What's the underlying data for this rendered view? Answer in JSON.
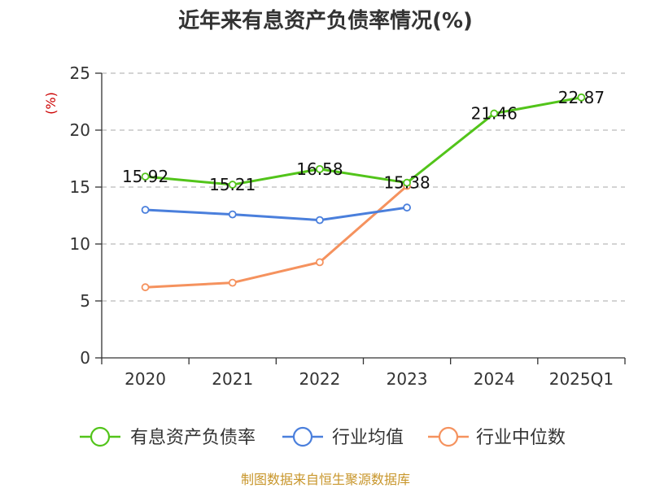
{
  "chart_data": {
    "type": "line",
    "title": "近年来有息资产负债率情况(%)",
    "ylabel": "(%)",
    "categories": [
      "2020",
      "2021",
      "2022",
      "2023",
      "2024",
      "2025Q1"
    ],
    "ylim": [
      0,
      25
    ],
    "yticks": [
      "0",
      "5",
      "10",
      "15",
      "20",
      "25"
    ],
    "grid": true,
    "legend_position": "bottom",
    "series": [
      {
        "name": "有息资产负债率",
        "color": "#52c41a",
        "values": [
          15.92,
          15.21,
          16.58,
          15.38,
          21.46,
          22.87
        ],
        "labels": [
          "15.92",
          "15.21",
          "16.58",
          "15.38",
          "21.46",
          "22.87"
        ]
      },
      {
        "name": "行业均值",
        "color": "#4a7fdc",
        "values": [
          13.0,
          12.6,
          12.1,
          13.2,
          null,
          null
        ]
      },
      {
        "name": "行业中位数",
        "color": "#f5925e",
        "values": [
          6.2,
          6.6,
          8.4,
          15.1,
          null,
          null
        ]
      }
    ]
  },
  "footer": {
    "source": "制图数据来自恒生聚源数据库"
  }
}
